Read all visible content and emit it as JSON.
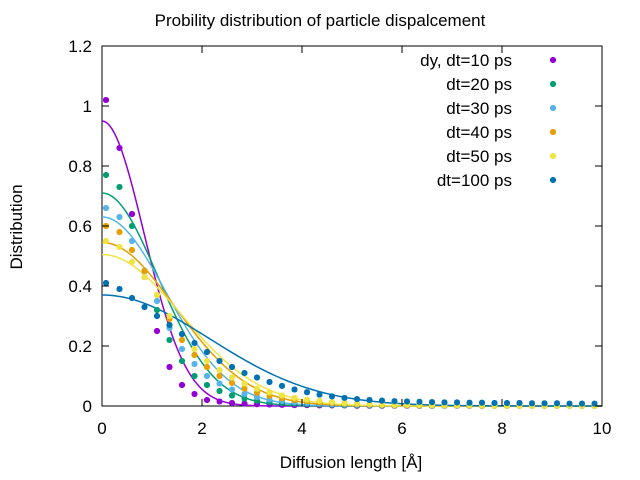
{
  "chart_data": {
    "type": "scatter",
    "title": "Probility distribution of particle dispalcement",
    "xlabel": "Diffusion length [Å]",
    "ylabel": "Distribution",
    "xlim": [
      0,
      10
    ],
    "ylim": [
      0,
      1.2
    ],
    "xticks": [
      "0",
      "2",
      "4",
      "6",
      "8",
      "10"
    ],
    "yticks": [
      "0",
      "0.2",
      "0.4",
      "0.6",
      "0.8",
      "1",
      "1.2"
    ],
    "grid": false,
    "legend_position": "top-right",
    "x": [
      0.08,
      0.35,
      0.6,
      0.85,
      1.1,
      1.35,
      1.6,
      1.85,
      2.1,
      2.35,
      2.6,
      2.85,
      3.1,
      3.35,
      3.6,
      3.85,
      4.1,
      4.35,
      4.6,
      4.85,
      5.1,
      5.35,
      5.6,
      5.85,
      6.1,
      6.35,
      6.6,
      6.85,
      7.1,
      7.35,
      7.6,
      7.85,
      8.1,
      8.35,
      8.6,
      8.85,
      9.1,
      9.35,
      9.6,
      9.85
    ],
    "series": [
      {
        "name": "dy, dt=10 ps",
        "color": "#9400d3",
        "values": [
          1.02,
          0.86,
          0.64,
          0.43,
          0.25,
          0.13,
          0.07,
          0.04,
          0.02,
          0.015,
          0.01,
          0.008,
          0.006,
          0.005,
          0.004,
          0.003,
          0.003,
          0.002,
          0.002,
          0.002,
          0.001,
          0.001,
          0.001,
          0.001,
          0.001,
          0.001,
          0.001,
          0.001,
          0.001,
          0.001,
          0.001,
          0.001,
          0.001,
          0.001,
          0.001,
          0.001,
          0.001,
          0.001,
          0.001,
          0.001
        ],
        "fit": {
          "amplitude": 0.95,
          "sigma": 0.84
        }
      },
      {
        "name": "dt=20 ps",
        "color": "#009e73",
        "values": [
          0.77,
          0.73,
          0.6,
          0.45,
          0.32,
          0.22,
          0.15,
          0.1,
          0.07,
          0.05,
          0.035,
          0.025,
          0.018,
          0.013,
          0.01,
          0.008,
          0.006,
          0.005,
          0.004,
          0.003,
          0.003,
          0.002,
          0.002,
          0.002,
          0.002,
          0.001,
          0.001,
          0.001,
          0.001,
          0.001,
          0.001,
          0.001,
          0.001,
          0.001,
          0.001,
          0.001,
          0.001,
          0.001,
          0.001,
          0.001
        ],
        "fit": {
          "amplitude": 0.71,
          "sigma": 1.12
        }
      },
      {
        "name": "dt=30 ps",
        "color": "#56b4e9",
        "values": [
          0.66,
          0.63,
          0.55,
          0.45,
          0.35,
          0.26,
          0.19,
          0.14,
          0.1,
          0.075,
          0.055,
          0.04,
          0.03,
          0.022,
          0.017,
          0.013,
          0.01,
          0.008,
          0.006,
          0.005,
          0.004,
          0.003,
          0.003,
          0.002,
          0.002,
          0.002,
          0.002,
          0.001,
          0.001,
          0.001,
          0.001,
          0.001,
          0.001,
          0.001,
          0.001,
          0.001,
          0.001,
          0.001,
          0.001,
          0.001
        ],
        "fit": {
          "amplitude": 0.63,
          "sigma": 1.27
        }
      },
      {
        "name": "dt=40 ps",
        "color": "#e69f00",
        "values": [
          0.6,
          0.58,
          0.52,
          0.45,
          0.37,
          0.29,
          0.22,
          0.17,
          0.13,
          0.1,
          0.077,
          0.058,
          0.044,
          0.034,
          0.026,
          0.02,
          0.016,
          0.012,
          0.01,
          0.008,
          0.006,
          0.005,
          0.004,
          0.003,
          0.003,
          0.002,
          0.002,
          0.002,
          0.002,
          0.001,
          0.001,
          0.001,
          0.001,
          0.001,
          0.001,
          0.001,
          0.001,
          0.001,
          0.001,
          0.001
        ],
        "fit": {
          "amplitude": 0.545,
          "sigma": 1.46
        }
      },
      {
        "name": "dt=50 ps",
        "color": "#f0e442",
        "values": [
          0.55,
          0.53,
          0.48,
          0.43,
          0.37,
          0.3,
          0.24,
          0.19,
          0.15,
          0.12,
          0.095,
          0.075,
          0.058,
          0.045,
          0.035,
          0.027,
          0.021,
          0.017,
          0.013,
          0.01,
          0.008,
          0.007,
          0.005,
          0.004,
          0.004,
          0.003,
          0.003,
          0.002,
          0.002,
          0.002,
          0.002,
          0.001,
          0.001,
          0.001,
          0.001,
          0.001,
          0.001,
          0.001,
          0.001,
          0.001
        ],
        "fit": {
          "amplitude": 0.505,
          "sigma": 1.58
        }
      },
      {
        "name": "dt=100 ps",
        "color": "#0072b2",
        "values": [
          0.41,
          0.39,
          0.36,
          0.33,
          0.3,
          0.27,
          0.24,
          0.21,
          0.18,
          0.15,
          0.13,
          0.11,
          0.095,
          0.08,
          0.067,
          0.055,
          0.046,
          0.038,
          0.032,
          0.027,
          0.023,
          0.02,
          0.018,
          0.016,
          0.015,
          0.014,
          0.013,
          0.012,
          0.012,
          0.011,
          0.011,
          0.01,
          0.01,
          0.01,
          0.009,
          0.009,
          0.009,
          0.008,
          0.008,
          0.008
        ],
        "fit": {
          "amplitude": 0.37,
          "sigma": 2.15
        }
      }
    ]
  }
}
